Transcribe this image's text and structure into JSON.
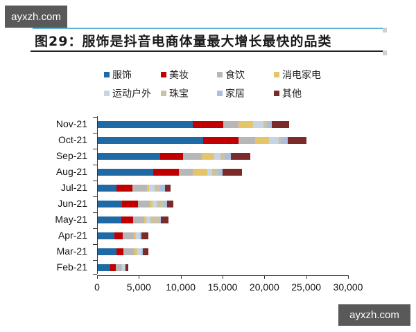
{
  "watermarks": {
    "top": "ayxzh.com",
    "bottom": "ayxzh.com"
  },
  "title": "图29：服饰是抖音电商体量最大增长最快的品类",
  "chart_data": {
    "type": "bar",
    "orientation": "horizontal",
    "stacked": true,
    "title": "图29：服饰是抖音电商体量最大增长最快的品类",
    "xlabel": "",
    "ylabel": "",
    "xlim": [
      0,
      30000
    ],
    "x_ticks": [
      "0",
      "5,000",
      "10,000",
      "15,000",
      "20,000",
      "25,000",
      "30,000"
    ],
    "grid": false,
    "legend_position": "top",
    "categories": [
      "Nov-21",
      "Oct-21",
      "Sep-21",
      "Aug-21",
      "Jul-21",
      "Jun-21",
      "May-21",
      "Apr-21",
      "Mar-21",
      "Feb-21"
    ],
    "series": [
      {
        "name": "服饰",
        "color": "#1f6aa5",
        "values": [
          11400,
          12600,
          7450,
          6650,
          2250,
          2900,
          2800,
          2000,
          2250,
          1500
        ]
      },
      {
        "name": "美妆",
        "color": "#c00000",
        "values": [
          3650,
          4300,
          2750,
          3050,
          1900,
          1900,
          1400,
          1000,
          850,
          650
        ]
      },
      {
        "name": "食饮",
        "color": "#b7b7b7",
        "values": [
          1800,
          2000,
          2250,
          1650,
          1750,
          1400,
          1400,
          1300,
          1300,
          650
        ]
      },
      {
        "name": "消电家电",
        "color": "#e6c56a",
        "values": [
          1800,
          1650,
          1500,
          1800,
          250,
          350,
          250,
          250,
          350,
          100
        ]
      },
      {
        "name": "运动户外",
        "color": "#c5d5e6",
        "values": [
          1250,
          1150,
          750,
          600,
          650,
          500,
          500,
          500,
          500,
          350
        ]
      },
      {
        "name": "珠宝",
        "color": "#c9c3a3",
        "values": [
          350,
          350,
          500,
          750,
          650,
          900,
          1100,
          0,
          0,
          100
        ]
      },
      {
        "name": "家居",
        "color": "#a9bfdc",
        "values": [
          600,
          750,
          750,
          500,
          600,
          350,
          150,
          150,
          150,
          0
        ]
      },
      {
        "name": "其他",
        "color": "#7b2a2a",
        "values": [
          2100,
          2250,
          2300,
          2250,
          650,
          750,
          900,
          900,
          650,
          350
        ]
      }
    ]
  }
}
